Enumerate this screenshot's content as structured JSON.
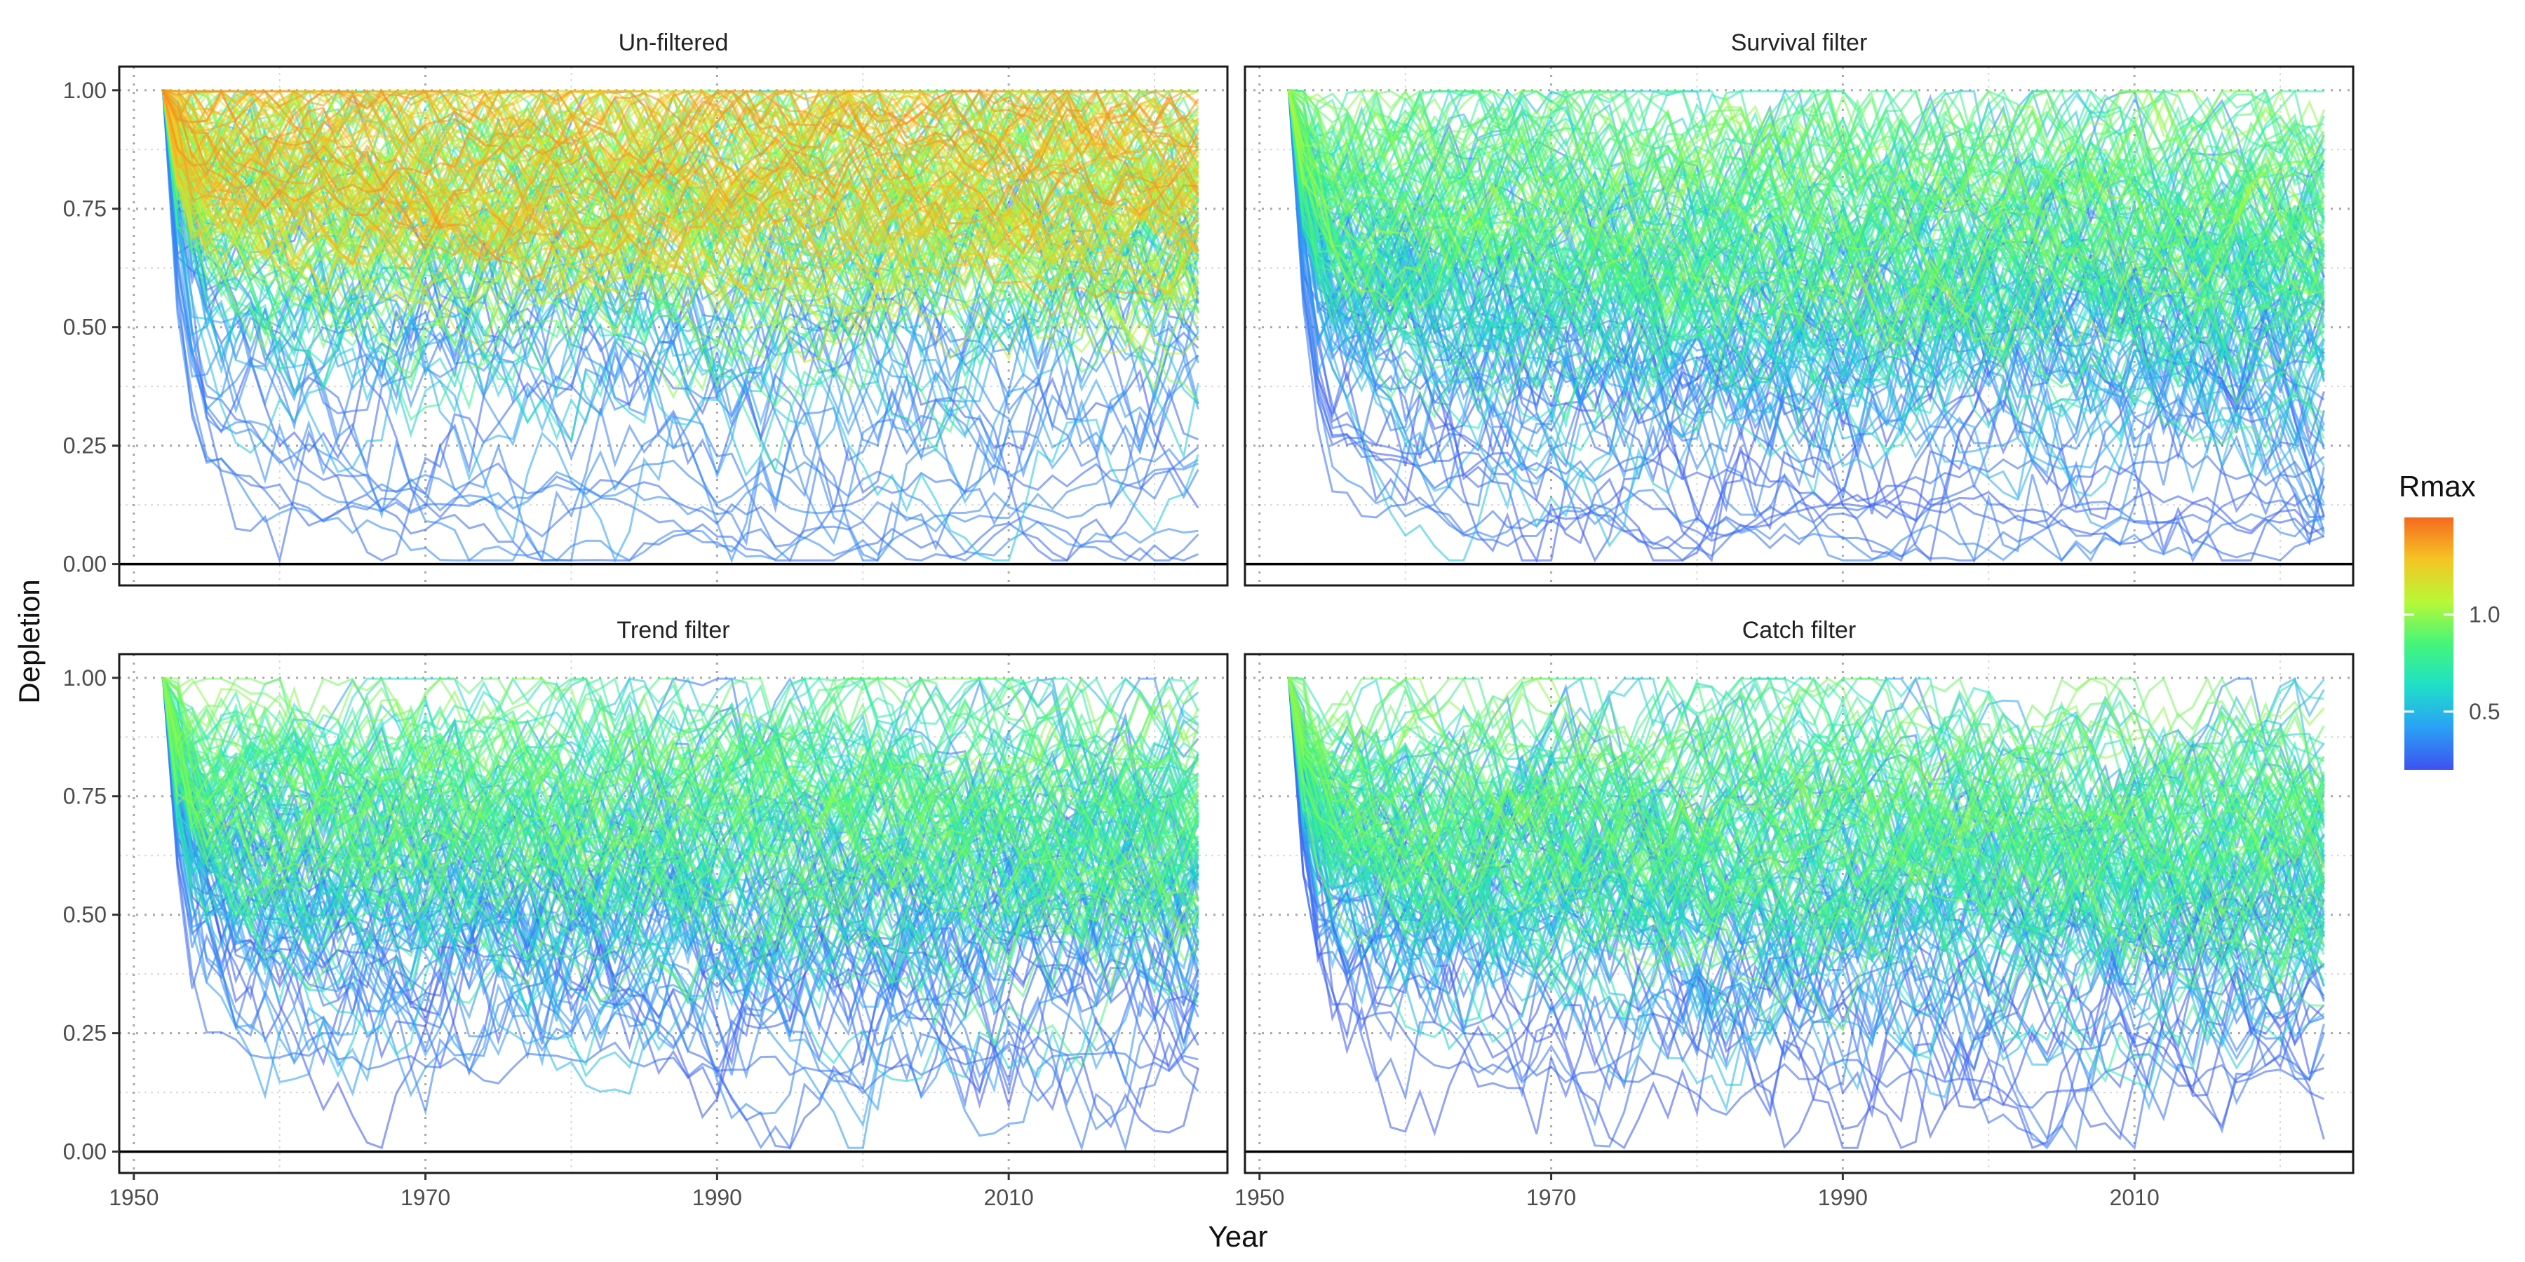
{
  "chart_data": {
    "type": "line",
    "panels": [
      {
        "title": "Un-filtered",
        "n_trajectories": 170,
        "seed": 11,
        "rmax_max": 1.42,
        "rmax_power": 0.7,
        "depletion_scale": 1.0,
        "extra_low": 6
      },
      {
        "title": "Survival filter",
        "n_trajectories": 150,
        "seed": 23,
        "rmax_max": 1.05,
        "rmax_power": 1.0,
        "depletion_scale": 1.0,
        "extra_low": 6
      },
      {
        "title": "Trend filter",
        "n_trajectories": 140,
        "seed": 37,
        "rmax_max": 1.0,
        "rmax_power": 1.0,
        "depletion_scale": 0.85,
        "extra_low": 1
      },
      {
        "title": "Catch filter",
        "n_trajectories": 140,
        "seed": 41,
        "rmax_max": 1.0,
        "rmax_power": 1.0,
        "depletion_scale": 0.85,
        "extra_low": 1
      }
    ],
    "x": {
      "label": "Year",
      "range": [
        1949,
        2025
      ],
      "ticks": [
        1950,
        1970,
        1990,
        2010
      ],
      "data_start": 1952,
      "data_end": 2023
    },
    "y": {
      "label": "Depletion",
      "range": [
        -0.045,
        1.05
      ],
      "ticks": [
        "0.00",
        "0.25",
        "0.50",
        "0.75",
        "1.00"
      ],
      "tick_values": [
        0,
        0.25,
        0.5,
        0.75,
        1.0
      ]
    },
    "color_legend": {
      "title": "Rmax",
      "min": 0.2,
      "max": 1.5,
      "ticks": [
        {
          "value": 0.5,
          "label": "0.5"
        },
        {
          "value": 1.0,
          "label": "1.0"
        }
      ]
    },
    "colormap": [
      "#3c52f0",
      "#2aa1f5",
      "#1fe0c8",
      "#45f579",
      "#b9f836",
      "#f5c524",
      "#f56a1e"
    ],
    "grid": true,
    "legend_position": "right",
    "trajectory_alpha": 0.55
  },
  "labels": {
    "x_axis_title": "Year",
    "y_axis_title": "Depletion",
    "legend_title": "Rmax"
  }
}
